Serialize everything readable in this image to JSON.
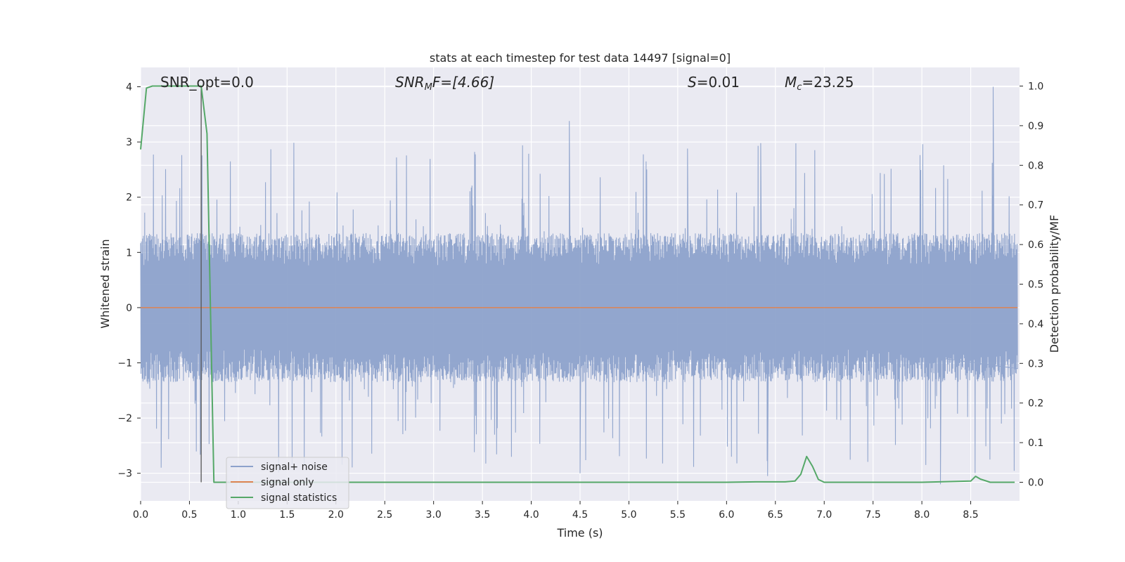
{
  "chart_data": {
    "type": "line",
    "title": "stats at each timestep for test data 14497 [signal=0]",
    "xlabel": "Time (s)",
    "ylabel": "Whitened strain",
    "ylabel_right": "Detection probability/MF",
    "xlim": [
      0.0,
      9.0
    ],
    "ylim": [
      -3.5,
      4.35
    ],
    "ylim_right": [
      -0.047,
      1.047
    ],
    "x_ticks": [
      "0.0",
      "0.5",
      "1.0",
      "1.5",
      "2.0",
      "2.5",
      "3.0",
      "3.5",
      "4.0",
      "4.5",
      "5.0",
      "5.5",
      "6.0",
      "6.5",
      "7.0",
      "7.5",
      "8.0",
      "8.5"
    ],
    "x_tick_values": [
      0.0,
      0.5,
      1.0,
      1.5,
      2.0,
      2.5,
      3.0,
      3.5,
      4.0,
      4.5,
      5.0,
      5.5,
      6.0,
      6.5,
      7.0,
      7.5,
      8.0,
      8.5
    ],
    "y_ticks": [
      "4",
      "3",
      "2",
      "1",
      "0",
      "−1",
      "−2",
      "−3"
    ],
    "y_tick_values": [
      4,
      3,
      2,
      1,
      0,
      -1,
      -2,
      -3
    ],
    "y_right_ticks": [
      "1.0",
      "0.9",
      "0.8",
      "0.7",
      "0.6",
      "0.5",
      "0.4",
      "0.3",
      "0.2",
      "0.1",
      "0.0"
    ],
    "y_right_tick_values": [
      1.0,
      0.9,
      0.8,
      0.7,
      0.6,
      0.5,
      0.4,
      0.3,
      0.2,
      0.1,
      0.0
    ],
    "grid": true,
    "legend_position": "lower-left",
    "annotations": {
      "snr_opt": "SNR_opt=0.0",
      "snr_mf_base": "SNR",
      "snr_mf_sub": "M",
      "snr_mf_rest": "F=[4.66]",
      "s_sym": "S",
      "s_val": "=0.01",
      "mc_sym": "M",
      "mc_sub": "c",
      "mc_val": "=23.25"
    },
    "vertical_marker_x": 0.62,
    "series": [
      {
        "name": "signal+ noise",
        "color": "#8da2cb",
        "kind": "noise",
        "envelope_typical": 1.35,
        "envelope_max": 3.0,
        "peaks": [
          {
            "x": 4.39,
            "y": 3.38
          },
          {
            "x": 8.73,
            "y": 4.0
          },
          {
            "x": 8.19,
            "y": -3.2
          },
          {
            "x": 4.5,
            "y": -3.0
          },
          {
            "x": 6.42,
            "y": -3.05
          },
          {
            "x": 0.21,
            "y": -2.9
          },
          {
            "x": 3.42,
            "y": 2.82
          },
          {
            "x": 6.35,
            "y": 2.98
          },
          {
            "x": 5.6,
            "y": 2.88
          },
          {
            "x": 2.62,
            "y": 2.72
          }
        ]
      },
      {
        "name": "signal only",
        "color": "#dd8452",
        "kind": "flat",
        "value": 0.0
      },
      {
        "name": "signal statistics",
        "color": "#55a868",
        "kind": "right-axis",
        "x": [
          0.0,
          0.06,
          0.12,
          0.2,
          0.3,
          0.4,
          0.5,
          0.6,
          0.62,
          0.68,
          0.75,
          1.0,
          2.0,
          3.0,
          4.0,
          5.0,
          6.0,
          6.3,
          6.6,
          6.7,
          6.76,
          6.82,
          6.88,
          6.94,
          7.0,
          7.5,
          8.0,
          8.5,
          8.55,
          8.6,
          8.7,
          8.95
        ],
        "y": [
          0.84,
          0.995,
          1.0,
          1.0,
          1.0,
          1.0,
          1.0,
          1.0,
          1.0,
          0.88,
          0.0,
          0.0,
          0.0,
          0.0,
          0.0,
          0.0,
          0.0,
          0.001,
          0.001,
          0.003,
          0.02,
          0.065,
          0.04,
          0.007,
          0.0,
          0.0,
          0.0,
          0.003,
          0.015,
          0.008,
          0.0,
          0.0
        ]
      }
    ]
  }
}
